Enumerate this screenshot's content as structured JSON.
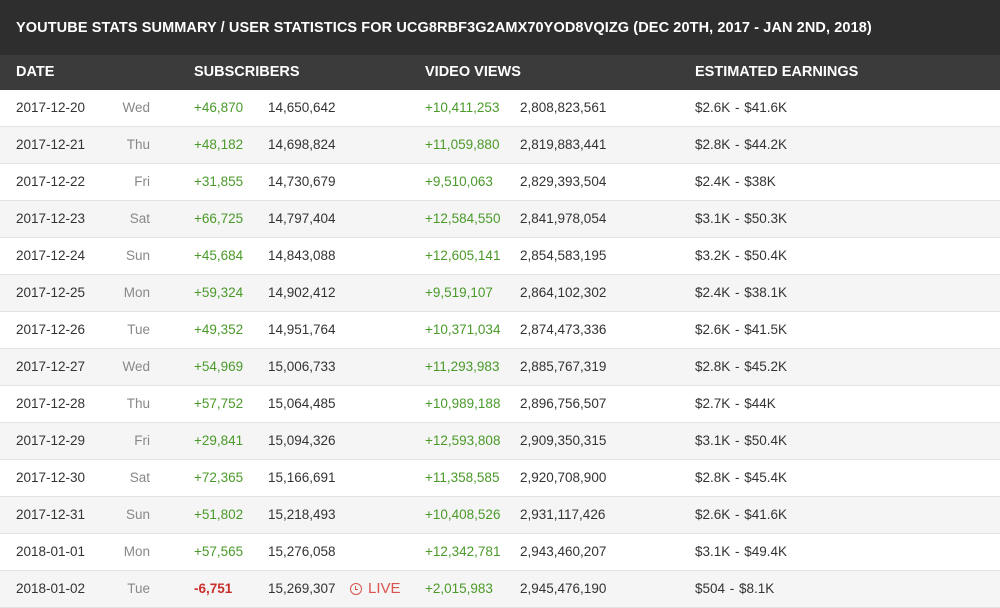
{
  "title": "YOUTUBE STATS SUMMARY / USER STATISTICS FOR UCG8RBF3G2AMX70YOD8VQIZG (DEC 20TH, 2017 - JAN 2ND, 2018)",
  "headers": {
    "date": "DATE",
    "subscribers": "SUBSCRIBERS",
    "video_views": "VIDEO VIEWS",
    "estimated_earnings": "ESTIMATED EARNINGS"
  },
  "colors": {
    "gain": "#4a9a2a",
    "loss": "#c9302c",
    "live": "#d9534f",
    "title_bg": "#2e2e2e",
    "header_bg": "#3b3b3b"
  },
  "live_label": "LIVE",
  "rows": [
    {
      "date": "2017-12-20",
      "day": "Wed",
      "sub_gain": "+46,870",
      "subs": "14,650,642",
      "view_gain": "+10,411,253",
      "views": "2,808,823,561",
      "earnings": "$2.6K  -  $41.6K"
    },
    {
      "date": "2017-12-21",
      "day": "Thu",
      "sub_gain": "+48,182",
      "subs": "14,698,824",
      "view_gain": "+11,059,880",
      "views": "2,819,883,441",
      "earnings": "$2.8K  -  $44.2K"
    },
    {
      "date": "2017-12-22",
      "day": "Fri",
      "sub_gain": "+31,855",
      "subs": "14,730,679",
      "view_gain": "+9,510,063",
      "views": "2,829,393,504",
      "earnings": "$2.4K  -  $38K"
    },
    {
      "date": "2017-12-23",
      "day": "Sat",
      "sub_gain": "+66,725",
      "subs": "14,797,404",
      "view_gain": "+12,584,550",
      "views": "2,841,978,054",
      "earnings": "$3.1K  -  $50.3K"
    },
    {
      "date": "2017-12-24",
      "day": "Sun",
      "sub_gain": "+45,684",
      "subs": "14,843,088",
      "view_gain": "+12,605,141",
      "views": "2,854,583,195",
      "earnings": "$3.2K  -  $50.4K"
    },
    {
      "date": "2017-12-25",
      "day": "Mon",
      "sub_gain": "+59,324",
      "subs": "14,902,412",
      "view_gain": "+9,519,107",
      "views": "2,864,102,302",
      "earnings": "$2.4K  -  $38.1K"
    },
    {
      "date": "2017-12-26",
      "day": "Tue",
      "sub_gain": "+49,352",
      "subs": "14,951,764",
      "view_gain": "+10,371,034",
      "views": "2,874,473,336",
      "earnings": "$2.6K  -  $41.5K"
    },
    {
      "date": "2017-12-27",
      "day": "Wed",
      "sub_gain": "+54,969",
      "subs": "15,006,733",
      "view_gain": "+11,293,983",
      "views": "2,885,767,319",
      "earnings": "$2.8K  -  $45.2K"
    },
    {
      "date": "2017-12-28",
      "day": "Thu",
      "sub_gain": "+57,752",
      "subs": "15,064,485",
      "view_gain": "+10,989,188",
      "views": "2,896,756,507",
      "earnings": "$2.7K  -  $44K"
    },
    {
      "date": "2017-12-29",
      "day": "Fri",
      "sub_gain": "+29,841",
      "subs": "15,094,326",
      "view_gain": "+12,593,808",
      "views": "2,909,350,315",
      "earnings": "$3.1K  -  $50.4K"
    },
    {
      "date": "2017-12-30",
      "day": "Sat",
      "sub_gain": "+72,365",
      "subs": "15,166,691",
      "view_gain": "+11,358,585",
      "views": "2,920,708,900",
      "earnings": "$2.8K  -  $45.4K"
    },
    {
      "date": "2017-12-31",
      "day": "Sun",
      "sub_gain": "+51,802",
      "subs": "15,218,493",
      "view_gain": "+10,408,526",
      "views": "2,931,117,426",
      "earnings": "$2.6K  -  $41.6K"
    },
    {
      "date": "2018-01-01",
      "day": "Mon",
      "sub_gain": "+57,565",
      "subs": "15,276,058",
      "view_gain": "+12,342,781",
      "views": "2,943,460,207",
      "earnings": "$3.1K  -  $49.4K"
    },
    {
      "date": "2018-01-02",
      "day": "Tue",
      "sub_gain": "-6,751",
      "subs": "15,269,307",
      "view_gain": "+2,015,983",
      "views": "2,945,476,190",
      "earnings": "$504  -  $8.1K",
      "live": true
    }
  ]
}
